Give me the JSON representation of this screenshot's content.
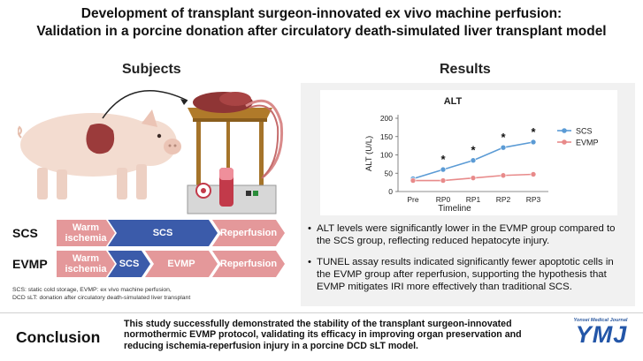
{
  "header": {
    "title_line1": "Development of transplant surgeon-innovated ex vivo machine perfusion:",
    "title_line2": "Validation in a porcine donation after circulatory death-simulated liver transplant model"
  },
  "subjects": {
    "title": "Subjects",
    "rows": [
      {
        "label": "SCS",
        "segments": [
          "Warm ischemia",
          "SCS",
          "Reperfusion"
        ]
      },
      {
        "label": "EVMP",
        "segments": [
          "Warm ischemia",
          "SCS",
          "EVMP",
          "Reperfusion"
        ]
      }
    ],
    "segment_text": {
      "warm_line1": "Warm",
      "warm_line2": "ischemia"
    },
    "footnote_line1": "SCS: static cold storage, EVMP: ex vivo machine perfusion,",
    "footnote_line2": "DCD sLT: donation after circulatory death-simulated liver transplant"
  },
  "results": {
    "title": "Results",
    "bullet_symbol": "•",
    "bullets": [
      "ALT levels were significantly lower in the EVMP group compared to the SCS group, reflecting reduced hepatocyte injury.",
      "TUNEL assay results indicated significantly fewer apoptotic cells in the EVMP group after reperfusion, supporting the hypothesis that EVMP mitigates IRI more effectively than traditional SCS."
    ]
  },
  "chart_data": {
    "type": "line",
    "title": "ALT",
    "xlabel": "Timeline",
    "ylabel": "ALT (U/L)",
    "ylim": [
      0,
      200
    ],
    "yticks": [
      0,
      50,
      100,
      150,
      200
    ],
    "categories": [
      "Pre",
      "RP0",
      "RP1",
      "RP2",
      "RP3"
    ],
    "series": [
      {
        "name": "SCS",
        "color": "#5b9bd5",
        "values": [
          35,
          60,
          85,
          120,
          135
        ]
      },
      {
        "name": "EVMP",
        "color": "#e88a8a",
        "values": [
          30,
          30,
          37,
          44,
          47
        ]
      }
    ],
    "annotations": [
      {
        "category": "RP0",
        "text": "*"
      },
      {
        "category": "RP1",
        "text": "*"
      },
      {
        "category": "RP2",
        "text": "*"
      },
      {
        "category": "RP3",
        "text": "*"
      }
    ],
    "legend": "top-right"
  },
  "conclusion": {
    "label": "Conclusion",
    "text": "This study successfully demonstrated the stability of the transplant surgeon-innovated normothermic EVMP protocol, validating its efficacy in improving organ preservation and reducing ischemia-reperfusion injury in a porcine DCD sLT model."
  },
  "journal": {
    "name_small": "Yonsei Medical Journal",
    "logo": "YMJ"
  },
  "colors": {
    "pink_segment": "#e4989a",
    "blue_segment": "#3b5baa",
    "panel_bg": "#f1f1f1",
    "journal_blue": "#2356a8"
  }
}
